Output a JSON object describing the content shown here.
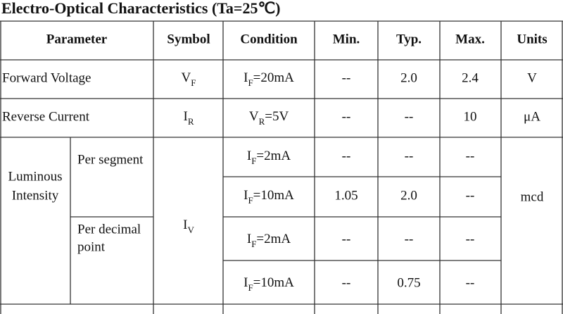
{
  "title": "Electro-Optical Characteristics (Ta=25℃)",
  "table": {
    "header": [
      "Parameter",
      "Symbol",
      "Condition",
      "Min.",
      "Typ.",
      "Max.",
      "Units"
    ],
    "rows": [
      {
        "parameter": "Forward Voltage",
        "symbol": {
          "base": "V",
          "sub": "F"
        },
        "condition": {
          "base": "I",
          "sub": "F",
          "rest": "=20mA"
        },
        "min": "--",
        "typ": "2.0",
        "max": "2.4",
        "units": "V"
      },
      {
        "parameter": "Reverse Current",
        "symbol": {
          "base": "I",
          "sub": "R"
        },
        "condition": {
          "base": "V",
          "sub": "R",
          "rest": "=5V"
        },
        "min": "--",
        "typ": "--",
        "max": "10",
        "units": "μA"
      },
      {
        "parameter": [
          "Luminous",
          "Intensity"
        ],
        "symbol": {
          "base": "I",
          "sub": "V"
        },
        "units": "mcd",
        "groups": [
          {
            "label": [
              "Per segment"
            ],
            "rows": [
              {
                "condition": {
                  "base": "I",
                  "sub": "F",
                  "rest": "=2mA"
                },
                "min": "--",
                "typ": "--",
                "max": "--"
              },
              {
                "condition": {
                  "base": "I",
                  "sub": "F",
                  "rest": "=10mA"
                },
                "min": "1.05",
                "typ": "2.0",
                "max": "--"
              }
            ]
          },
          {
            "label": [
              "Per decimal",
              "point"
            ],
            "rows": [
              {
                "condition": {
                  "base": "I",
                  "sub": "F",
                  "rest": "=2mA"
                },
                "min": "--",
                "typ": "--",
                "max": "--"
              },
              {
                "condition": {
                  "base": "I",
                  "sub": "F",
                  "rest": "=10mA"
                },
                "min": "--",
                "typ": "0.75",
                "max": "--"
              }
            ]
          }
        ]
      }
    ]
  }
}
